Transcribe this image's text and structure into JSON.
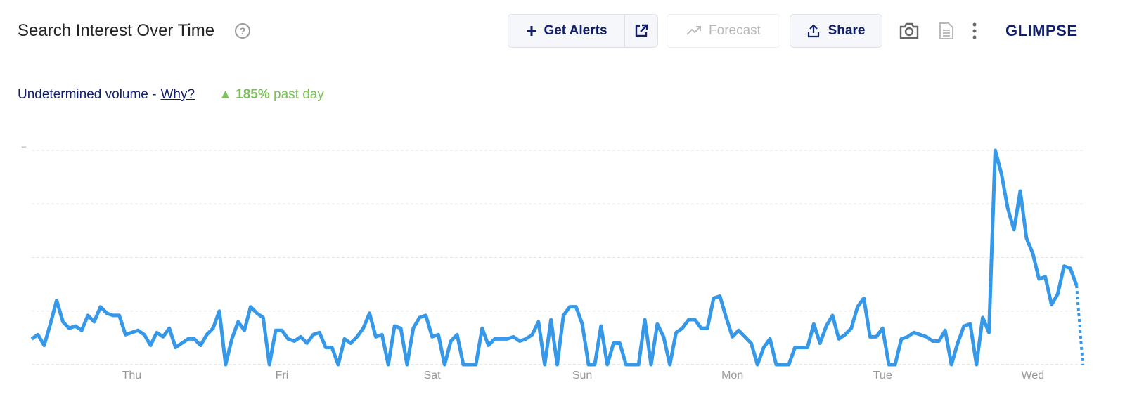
{
  "header": {
    "title": "Search Interest Over Time",
    "get_alerts": "Get Alerts",
    "forecast": "Forecast",
    "share": "Share",
    "logo": "GLIMPSE"
  },
  "summary": {
    "volume_note": "Undetermined volume -",
    "why_link": "Why?",
    "change": {
      "value": 185,
      "label": "185%"
    },
    "change_period": "past day"
  },
  "chart_data": {
    "type": "line",
    "xlim": [
      0,
      168
    ],
    "xticks": [
      {
        "value": 16,
        "label": "Thu"
      },
      {
        "value": 40,
        "label": "Fri"
      },
      {
        "value": 64,
        "label": "Sat"
      },
      {
        "value": 88,
        "label": "Sun"
      },
      {
        "value": 112,
        "label": "Mon"
      },
      {
        "value": 136,
        "label": "Tue"
      },
      {
        "value": 160,
        "label": "Wed"
      }
    ],
    "ylim": [
      0,
      100
    ],
    "yticks": [
      {
        "value": 100,
        "label": "–"
      }
    ],
    "grid_lines": [
      0,
      25,
      50,
      75,
      100
    ],
    "grid": true,
    "color": "#3598e8",
    "last_segment_dotted": true,
    "values": [
      12,
      14,
      9,
      19,
      30,
      20,
      17,
      18,
      16,
      23,
      20,
      27,
      24,
      23,
      23,
      14,
      15,
      16,
      14,
      9,
      15,
      13,
      17,
      8,
      10,
      12,
      12,
      9,
      14,
      17,
      25,
      0,
      12,
      20,
      16,
      27,
      24,
      22,
      0,
      16,
      16,
      12,
      11,
      13,
      10,
      14,
      15,
      8,
      8,
      0,
      12,
      10,
      13,
      17,
      24,
      13,
      14,
      0,
      18,
      17,
      0,
      17,
      22,
      23,
      13,
      14,
      0,
      11,
      14,
      0,
      0,
      0,
      17,
      9,
      12,
      12,
      12,
      13,
      11,
      12,
      14,
      20,
      0,
      21,
      0,
      23,
      27,
      27,
      19,
      0,
      0,
      18,
      0,
      10,
      10,
      0,
      0,
      0,
      21,
      0,
      19,
      13,
      0,
      15,
      17,
      21,
      21,
      17,
      17,
      31,
      32,
      22,
      13,
      16,
      13,
      10,
      0,
      8,
      12,
      0,
      0,
      0,
      8,
      8,
      8,
      19,
      10,
      18,
      23,
      12,
      14,
      17,
      27,
      31,
      13,
      13,
      17,
      0,
      0,
      12,
      13,
      15,
      14,
      13,
      11,
      11,
      16,
      0,
      10,
      18,
      19,
      0,
      22,
      15,
      100,
      89,
      73,
      63,
      81,
      59,
      52,
      40,
      41,
      28,
      33,
      46,
      45,
      37,
      0
    ]
  }
}
